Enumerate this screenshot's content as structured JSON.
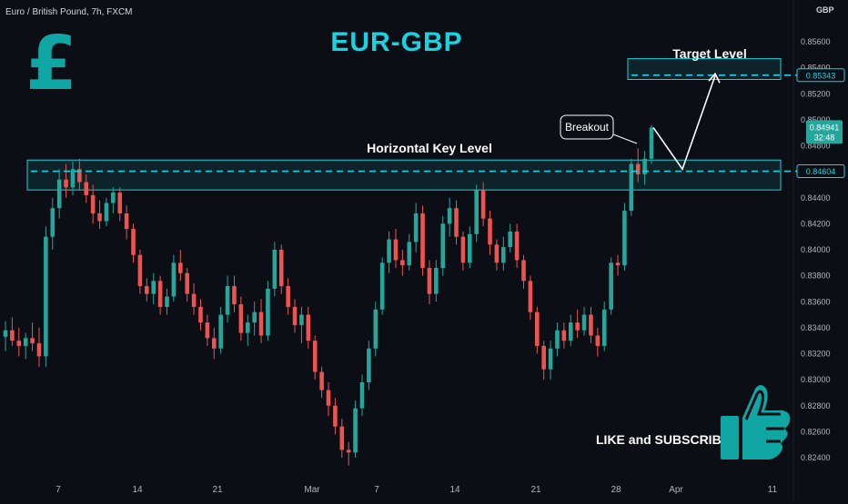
{
  "chart_header": {
    "symbol": "Euro / British Pound, 7h, FXCM",
    "title": "EUR-GBP",
    "currency_glyph": "£",
    "axis_currency": "GBP"
  },
  "annotations": {
    "target_label": "Target Level",
    "key_level_label": "Horizontal Key Level",
    "breakout_label": "Breakout",
    "cta": "LIKE and SUBSCRIBE"
  },
  "price_tags": {
    "target": "0.85343",
    "key_level": "0.84604",
    "current": "0.84941",
    "countdown": "32:48"
  },
  "colors": {
    "background": "#0c0e15",
    "up": "#26a69a",
    "down": "#ef5350",
    "accent": "#19d3e0",
    "brand": "#0fa6a4"
  },
  "chart_data": {
    "type": "candlestick",
    "ylim": [
      0.823,
      0.858
    ],
    "y_ticks": [
      "0.85600",
      "0.85400",
      "0.85200",
      "0.85000",
      "0.84800",
      "0.84600",
      "0.84400",
      "0.84200",
      "0.84000",
      "0.83800",
      "0.83600",
      "0.83400",
      "0.83200",
      "0.83000",
      "0.82800",
      "0.82600",
      "0.82400"
    ],
    "x_ticks": [
      "7",
      "14",
      "21",
      "Mar",
      "7",
      "14",
      "21",
      "28",
      "Apr",
      "11"
    ],
    "levels": {
      "key_level": 0.84604,
      "key_zone": [
        0.8446,
        0.8469
      ],
      "target": 0.85343,
      "target_zone": [
        0.8531,
        0.8547
      ]
    },
    "projection": [
      0.8494,
      0.8462,
      0.8534
    ],
    "ohlc": [
      [
        0.8333,
        0.8345,
        0.8322,
        0.8338
      ],
      [
        0.8338,
        0.8348,
        0.8326,
        0.833
      ],
      [
        0.833,
        0.834,
        0.8318,
        0.8326
      ],
      [
        0.8326,
        0.8336,
        0.8316,
        0.8332
      ],
      [
        0.8332,
        0.8344,
        0.8322,
        0.8328
      ],
      [
        0.8328,
        0.834,
        0.831,
        0.8318
      ],
      [
        0.8318,
        0.8418,
        0.831,
        0.841
      ],
      [
        0.841,
        0.844,
        0.84,
        0.8432
      ],
      [
        0.8432,
        0.8462,
        0.8424,
        0.8454
      ],
      [
        0.8454,
        0.8466,
        0.844,
        0.8448
      ],
      [
        0.8448,
        0.8468,
        0.8442,
        0.8462
      ],
      [
        0.8462,
        0.847,
        0.8446,
        0.8452
      ],
      [
        0.8452,
        0.8458,
        0.8436,
        0.8442
      ],
      [
        0.8442,
        0.845,
        0.842,
        0.8428
      ],
      [
        0.8428,
        0.8438,
        0.8416,
        0.8422
      ],
      [
        0.8422,
        0.844,
        0.8418,
        0.8436
      ],
      [
        0.8436,
        0.8448,
        0.8428,
        0.8444
      ],
      [
        0.8444,
        0.8448,
        0.8422,
        0.8428
      ],
      [
        0.8428,
        0.8434,
        0.8408,
        0.8416
      ],
      [
        0.8416,
        0.842,
        0.839,
        0.8396
      ],
      [
        0.8396,
        0.84,
        0.8366,
        0.8372
      ],
      [
        0.8372,
        0.8378,
        0.836,
        0.8366
      ],
      [
        0.8366,
        0.8382,
        0.8358,
        0.8376
      ],
      [
        0.8376,
        0.838,
        0.835,
        0.8356
      ],
      [
        0.8356,
        0.837,
        0.835,
        0.8364
      ],
      [
        0.8364,
        0.8396,
        0.836,
        0.839
      ],
      [
        0.839,
        0.84,
        0.8376,
        0.8382
      ],
      [
        0.8382,
        0.8386,
        0.836,
        0.8366
      ],
      [
        0.8366,
        0.8374,
        0.835,
        0.8356
      ],
      [
        0.8356,
        0.8362,
        0.8338,
        0.8344
      ],
      [
        0.8344,
        0.835,
        0.8326,
        0.8332
      ],
      [
        0.8332,
        0.834,
        0.8316,
        0.8324
      ],
      [
        0.8324,
        0.8356,
        0.832,
        0.835
      ],
      [
        0.835,
        0.838,
        0.8344,
        0.8372
      ],
      [
        0.8372,
        0.838,
        0.8352,
        0.8358
      ],
      [
        0.8358,
        0.8364,
        0.833,
        0.8336
      ],
      [
        0.8336,
        0.835,
        0.8326,
        0.8344
      ],
      [
        0.8344,
        0.836,
        0.8334,
        0.8352
      ],
      [
        0.8352,
        0.8362,
        0.8328,
        0.8334
      ],
      [
        0.8334,
        0.8376,
        0.833,
        0.837
      ],
      [
        0.837,
        0.8406,
        0.8364,
        0.84
      ],
      [
        0.84,
        0.8404,
        0.8366,
        0.8372
      ],
      [
        0.8372,
        0.8378,
        0.835,
        0.8356
      ],
      [
        0.8356,
        0.8362,
        0.8336,
        0.8342
      ],
      [
        0.8342,
        0.8356,
        0.8328,
        0.835
      ],
      [
        0.835,
        0.8356,
        0.8324,
        0.833
      ],
      [
        0.833,
        0.8334,
        0.83,
        0.8306
      ],
      [
        0.8306,
        0.831,
        0.8286,
        0.8292
      ],
      [
        0.8292,
        0.8298,
        0.8272,
        0.828
      ],
      [
        0.828,
        0.8286,
        0.8258,
        0.8264
      ],
      [
        0.8264,
        0.827,
        0.824,
        0.8246
      ],
      [
        0.8246,
        0.8252,
        0.8234,
        0.8244
      ],
      [
        0.8244,
        0.8284,
        0.824,
        0.8278
      ],
      [
        0.8278,
        0.8304,
        0.8272,
        0.8298
      ],
      [
        0.8298,
        0.833,
        0.8292,
        0.8324
      ],
      [
        0.8324,
        0.836,
        0.8318,
        0.8354
      ],
      [
        0.8354,
        0.8394,
        0.835,
        0.839
      ],
      [
        0.839,
        0.8414,
        0.8382,
        0.8408
      ],
      [
        0.8408,
        0.8416,
        0.8386,
        0.8392
      ],
      [
        0.8392,
        0.84,
        0.838,
        0.8388
      ],
      [
        0.8388,
        0.8412,
        0.8384,
        0.8406
      ],
      [
        0.8406,
        0.8436,
        0.8398,
        0.8428
      ],
      [
        0.8428,
        0.8434,
        0.838,
        0.8386
      ],
      [
        0.8386,
        0.8392,
        0.8358,
        0.8366
      ],
      [
        0.8366,
        0.8392,
        0.836,
        0.8386
      ],
      [
        0.8386,
        0.8426,
        0.838,
        0.842
      ],
      [
        0.842,
        0.844,
        0.841,
        0.8432
      ],
      [
        0.8432,
        0.8438,
        0.8404,
        0.841
      ],
      [
        0.841,
        0.8414,
        0.8384,
        0.839
      ],
      [
        0.839,
        0.8418,
        0.8386,
        0.8412
      ],
      [
        0.8412,
        0.845,
        0.8406,
        0.8446
      ],
      [
        0.8446,
        0.8452,
        0.8418,
        0.8424
      ],
      [
        0.8424,
        0.843,
        0.8396,
        0.8404
      ],
      [
        0.8404,
        0.8408,
        0.8384,
        0.839
      ],
      [
        0.839,
        0.841,
        0.8384,
        0.8402
      ],
      [
        0.8402,
        0.842,
        0.8398,
        0.8414
      ],
      [
        0.8414,
        0.842,
        0.8386,
        0.8392
      ],
      [
        0.8392,
        0.8396,
        0.837,
        0.8376
      ],
      [
        0.8376,
        0.838,
        0.8346,
        0.8352
      ],
      [
        0.8352,
        0.8356,
        0.832,
        0.8326
      ],
      [
        0.8326,
        0.833,
        0.83,
        0.8308
      ],
      [
        0.8308,
        0.833,
        0.83,
        0.8324
      ],
      [
        0.8324,
        0.8344,
        0.8318,
        0.8338
      ],
      [
        0.8338,
        0.8344,
        0.8324,
        0.833
      ],
      [
        0.833,
        0.835,
        0.8326,
        0.8344
      ],
      [
        0.8344,
        0.8354,
        0.8332,
        0.8338
      ],
      [
        0.8338,
        0.8356,
        0.8334,
        0.835
      ],
      [
        0.835,
        0.8356,
        0.8328,
        0.8334
      ],
      [
        0.8334,
        0.834,
        0.8318,
        0.8326
      ],
      [
        0.8326,
        0.836,
        0.8322,
        0.8354
      ],
      [
        0.8354,
        0.8394,
        0.835,
        0.839
      ],
      [
        0.839,
        0.8396,
        0.838,
        0.8388
      ],
      [
        0.8388,
        0.8436,
        0.8384,
        0.843
      ],
      [
        0.843,
        0.847,
        0.8426,
        0.8466
      ],
      [
        0.8466,
        0.8478,
        0.8452,
        0.8458
      ],
      [
        0.8458,
        0.8476,
        0.845,
        0.847
      ],
      [
        0.847,
        0.8496,
        0.8466,
        0.8494
      ]
    ]
  }
}
